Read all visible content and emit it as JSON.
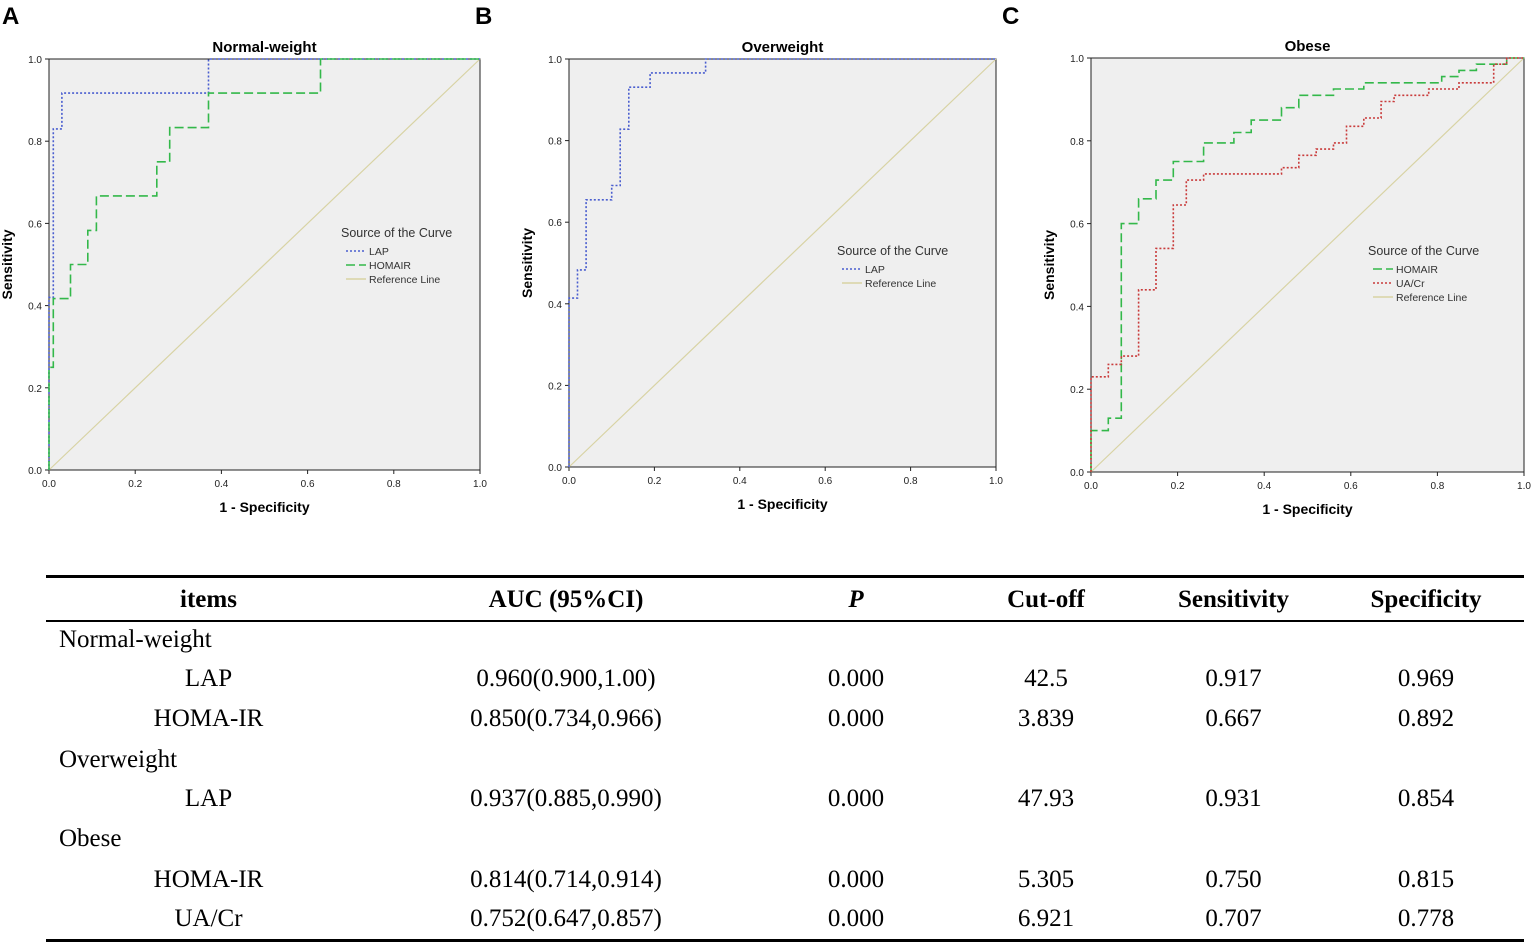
{
  "chart_data": [
    {
      "panel": "A",
      "type": "line",
      "title": "Normal-weight",
      "xlabel": "1 - Specificity",
      "ylabel": "Sensitivity",
      "xlim": [
        0,
        1
      ],
      "ylim": [
        0,
        1
      ],
      "x_ticks": [
        "0.0",
        "0.2",
        "0.4",
        "0.6",
        "0.8",
        "1.0"
      ],
      "y_ticks": [
        "0.0",
        "0.2",
        "0.4",
        "0.6",
        "0.8",
        "1.0"
      ],
      "legend_title": "Source of the Curve",
      "legend_position": "right",
      "series": [
        {
          "name": "LAP",
          "color": "#4a5ecf",
          "dash": "dotted",
          "points": [
            [
              0,
              0
            ],
            [
              0,
              0.42
            ],
            [
              0.01,
              0.42
            ],
            [
              0.01,
              0.83
            ],
            [
              0.03,
              0.83
            ],
            [
              0.03,
              0.917
            ],
            [
              0.37,
              0.917
            ],
            [
              0.37,
              1.0
            ],
            [
              1.0,
              1.0
            ]
          ]
        },
        {
          "name": "HOMAIR",
          "color": "#33b84a",
          "dash": "dashed",
          "points": [
            [
              0,
              0
            ],
            [
              0,
              0.25
            ],
            [
              0.01,
              0.25
            ],
            [
              0.01,
              0.417
            ],
            [
              0.05,
              0.417
            ],
            [
              0.05,
              0.5
            ],
            [
              0.09,
              0.5
            ],
            [
              0.09,
              0.583
            ],
            [
              0.11,
              0.583
            ],
            [
              0.11,
              0.667
            ],
            [
              0.25,
              0.667
            ],
            [
              0.25,
              0.75
            ],
            [
              0.28,
              0.75
            ],
            [
              0.28,
              0.833
            ],
            [
              0.37,
              0.833
            ],
            [
              0.37,
              0.917
            ],
            [
              0.63,
              0.917
            ],
            [
              0.63,
              1.0
            ],
            [
              1.0,
              1.0
            ]
          ]
        },
        {
          "name": "Reference Line",
          "color": "#d8d3a4",
          "dash": "solid",
          "points": [
            [
              0,
              0
            ],
            [
              1,
              1
            ]
          ]
        }
      ]
    },
    {
      "panel": "B",
      "type": "line",
      "title": "Overweight",
      "xlabel": "1 - Specificity",
      "ylabel": "Sensitivity",
      "xlim": [
        0,
        1
      ],
      "ylim": [
        0,
        1
      ],
      "x_ticks": [
        "0.0",
        "0.2",
        "0.4",
        "0.6",
        "0.8",
        "1.0"
      ],
      "y_ticks": [
        "0.0",
        "0.2",
        "0.4",
        "0.6",
        "0.8",
        "1.0"
      ],
      "legend_title": "Source of the Curve",
      "legend_position": "right",
      "series": [
        {
          "name": "LAP",
          "color": "#4a5ecf",
          "dash": "dotted",
          "points": [
            [
              0,
              0
            ],
            [
              0,
              0.414
            ],
            [
              0.02,
              0.414
            ],
            [
              0.02,
              0.483
            ],
            [
              0.04,
              0.483
            ],
            [
              0.04,
              0.655
            ],
            [
              0.1,
              0.655
            ],
            [
              0.1,
              0.69
            ],
            [
              0.12,
              0.69
            ],
            [
              0.12,
              0.828
            ],
            [
              0.14,
              0.828
            ],
            [
              0.14,
              0.931
            ],
            [
              0.19,
              0.931
            ],
            [
              0.19,
              0.966
            ],
            [
              0.32,
              0.966
            ],
            [
              0.32,
              1.0
            ],
            [
              1.0,
              1.0
            ]
          ]
        },
        {
          "name": "Reference Line",
          "color": "#d8d3a4",
          "dash": "solid",
          "points": [
            [
              0,
              0
            ],
            [
              1,
              1
            ]
          ]
        }
      ]
    },
    {
      "panel": "C",
      "type": "line",
      "title": "Obese",
      "xlabel": "1 - Specificity",
      "ylabel": "Sensitivity",
      "xlim": [
        0,
        1
      ],
      "ylim": [
        0,
        1
      ],
      "x_ticks": [
        "0.0",
        "0.2",
        "0.4",
        "0.6",
        "0.8",
        "1.0"
      ],
      "y_ticks": [
        "0.0",
        "0.2",
        "0.4",
        "0.6",
        "0.8",
        "1.0"
      ],
      "legend_title": "Source of the Curve",
      "legend_position": "right",
      "series": [
        {
          "name": "HOMAIR",
          "color": "#33b84a",
          "dash": "dashed",
          "points": [
            [
              0,
              0
            ],
            [
              0,
              0.1
            ],
            [
              0.04,
              0.1
            ],
            [
              0.04,
              0.13
            ],
            [
              0.07,
              0.13
            ],
            [
              0.07,
              0.6
            ],
            [
              0.11,
              0.6
            ],
            [
              0.11,
              0.66
            ],
            [
              0.15,
              0.66
            ],
            [
              0.15,
              0.705
            ],
            [
              0.19,
              0.705
            ],
            [
              0.19,
              0.75
            ],
            [
              0.26,
              0.75
            ],
            [
              0.26,
              0.795
            ],
            [
              0.33,
              0.795
            ],
            [
              0.33,
              0.82
            ],
            [
              0.37,
              0.82
            ],
            [
              0.37,
              0.85
            ],
            [
              0.44,
              0.85
            ],
            [
              0.44,
              0.88
            ],
            [
              0.48,
              0.88
            ],
            [
              0.48,
              0.91
            ],
            [
              0.56,
              0.91
            ],
            [
              0.56,
              0.925
            ],
            [
              0.63,
              0.925
            ],
            [
              0.63,
              0.94
            ],
            [
              0.81,
              0.94
            ],
            [
              0.81,
              0.955
            ],
            [
              0.85,
              0.955
            ],
            [
              0.85,
              0.97
            ],
            [
              0.89,
              0.97
            ],
            [
              0.89,
              0.985
            ],
            [
              0.96,
              0.985
            ],
            [
              0.96,
              1.0
            ],
            [
              1.0,
              1.0
            ]
          ]
        },
        {
          "name": "UA/Cr",
          "color": "#c93b3b",
          "dash": "dotted",
          "points": [
            [
              0,
              0
            ],
            [
              0,
              0.23
            ],
            [
              0.04,
              0.23
            ],
            [
              0.04,
              0.26
            ],
            [
              0.07,
              0.26
            ],
            [
              0.07,
              0.28
            ],
            [
              0.11,
              0.28
            ],
            [
              0.11,
              0.44
            ],
            [
              0.15,
              0.44
            ],
            [
              0.15,
              0.54
            ],
            [
              0.19,
              0.54
            ],
            [
              0.19,
              0.645
            ],
            [
              0.22,
              0.645
            ],
            [
              0.22,
              0.705
            ],
            [
              0.26,
              0.705
            ],
            [
              0.26,
              0.72
            ],
            [
              0.44,
              0.72
            ],
            [
              0.44,
              0.735
            ],
            [
              0.48,
              0.735
            ],
            [
              0.48,
              0.765
            ],
            [
              0.52,
              0.765
            ],
            [
              0.52,
              0.78
            ],
            [
              0.56,
              0.78
            ],
            [
              0.56,
              0.795
            ],
            [
              0.59,
              0.795
            ],
            [
              0.59,
              0.835
            ],
            [
              0.63,
              0.835
            ],
            [
              0.63,
              0.855
            ],
            [
              0.67,
              0.855
            ],
            [
              0.67,
              0.895
            ],
            [
              0.7,
              0.895
            ],
            [
              0.7,
              0.91
            ],
            [
              0.78,
              0.91
            ],
            [
              0.78,
              0.925
            ],
            [
              0.85,
              0.925
            ],
            [
              0.85,
              0.94
            ],
            [
              0.93,
              0.94
            ],
            [
              0.93,
              0.985
            ],
            [
              0.96,
              0.985
            ],
            [
              0.96,
              1.0
            ],
            [
              1.0,
              1.0
            ]
          ]
        },
        {
          "name": "Reference Line",
          "color": "#d8d3a4",
          "dash": "solid",
          "points": [
            [
              0,
              0
            ],
            [
              1,
              1
            ]
          ]
        }
      ]
    }
  ],
  "table": {
    "headers": {
      "items": "items",
      "auc": "AUC (95%CI)",
      "p": "P",
      "cutoff": "Cut-off",
      "sens": "Sensitivity",
      "spec": "Specificity"
    },
    "groups": {
      "normal": "Normal-weight",
      "over": "Overweight",
      "obese": "Obese"
    },
    "rows": {
      "n_lap": {
        "item": "LAP",
        "auc": "0.960(0.900,1.00)",
        "p": "0.000",
        "cutoff": "42.5",
        "sens": "0.917",
        "spec": "0.969"
      },
      "n_homa": {
        "item": "HOMA-IR",
        "auc": "0.850(0.734,0.966)",
        "p": "0.000",
        "cutoff": "3.839",
        "sens": "0.667",
        "spec": "0.892"
      },
      "o_lap": {
        "item": "LAP",
        "auc": "0.937(0.885,0.990)",
        "p": "0.000",
        "cutoff": "47.93",
        "sens": "0.931",
        "spec": "0.854"
      },
      "ob_homa": {
        "item": "HOMA-IR",
        "auc": "0.814(0.714,0.914)",
        "p": "0.000",
        "cutoff": "5.305",
        "sens": "0.750",
        "spec": "0.815"
      },
      "ob_uacr": {
        "item": "UA/Cr",
        "auc": "0.752(0.647,0.857)",
        "p": "0.000",
        "cutoff": "6.921",
        "sens": "0.707",
        "spec": "0.778"
      }
    }
  }
}
